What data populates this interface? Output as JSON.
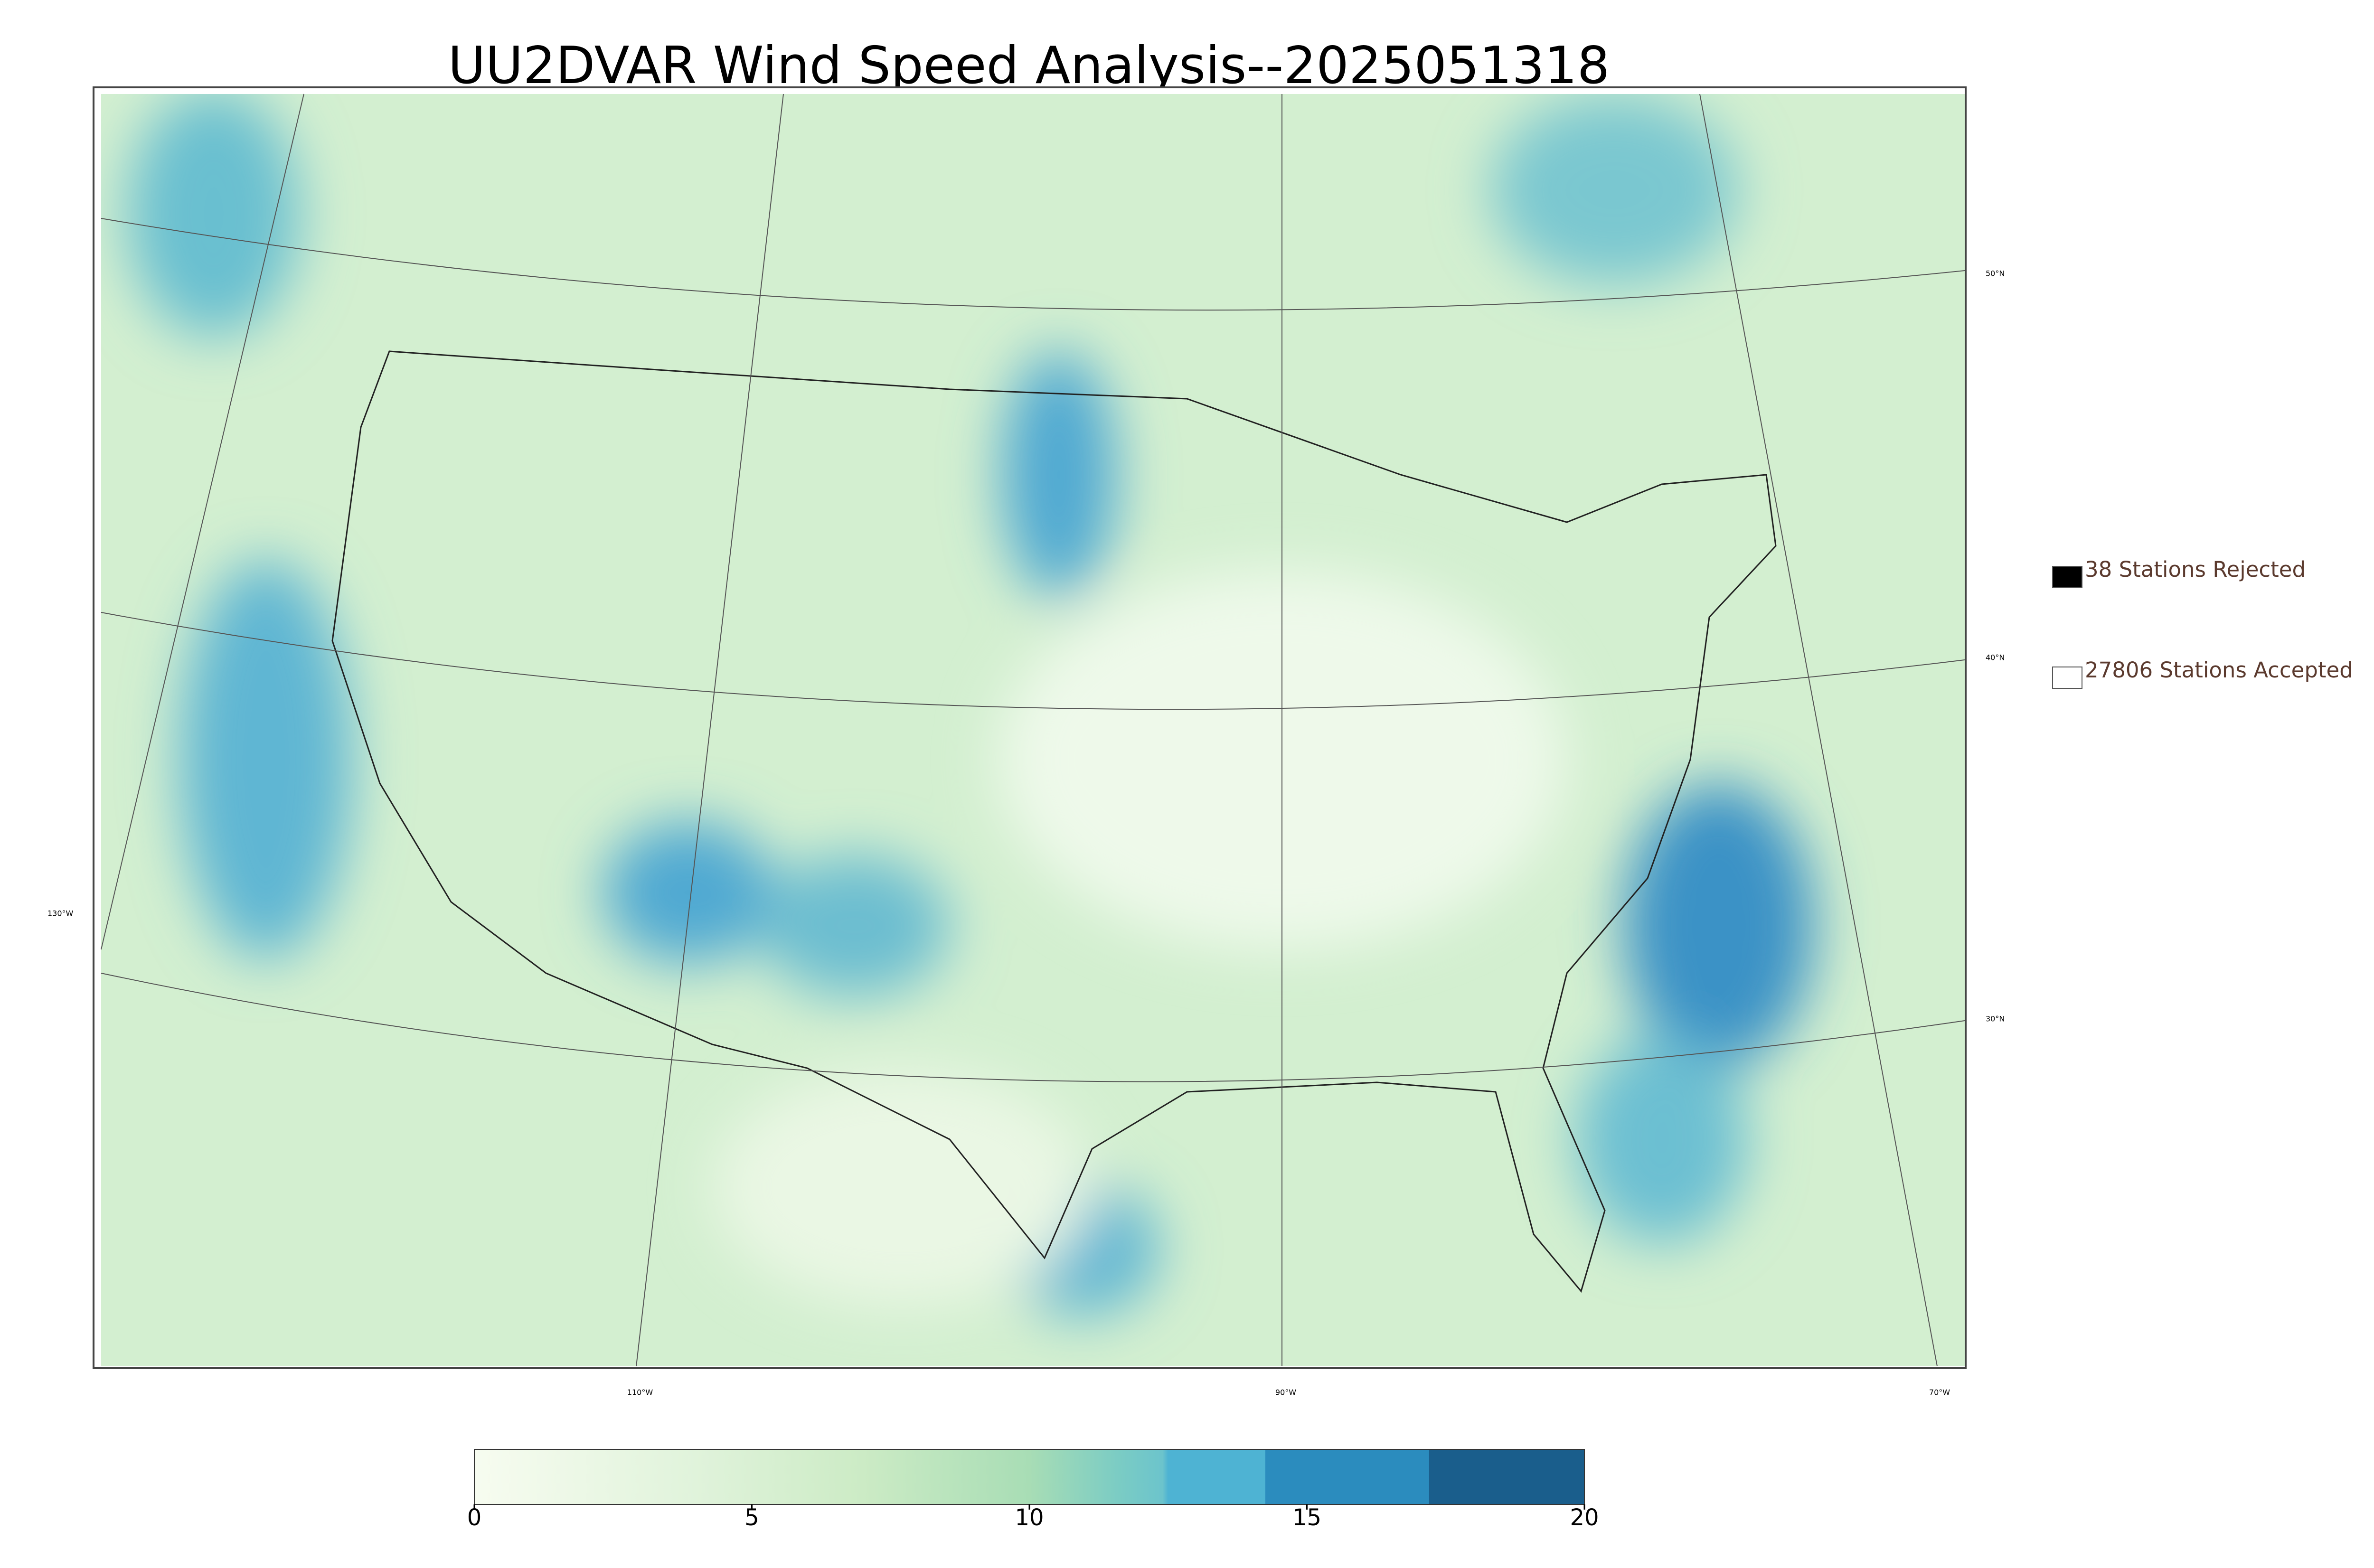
{
  "title": "UU2DVAR Wind Speed Analysis--2025051318",
  "legend": [
    {
      "label": "38 Stations Rejected",
      "color": "#000000"
    },
    {
      "label": "27806 Stations Accepted",
      "color": "#ffffff"
    }
  ],
  "latitude_labels": [
    "50°N",
    "40°N",
    "30°N",
    "130°W"
  ],
  "longitude_labels": [
    "110°W",
    "90°W",
    "70°W"
  ],
  "colorbar": {
    "lim": [
      0,
      20
    ],
    "ticks": [
      0,
      5,
      10,
      15,
      20
    ]
  }
}
